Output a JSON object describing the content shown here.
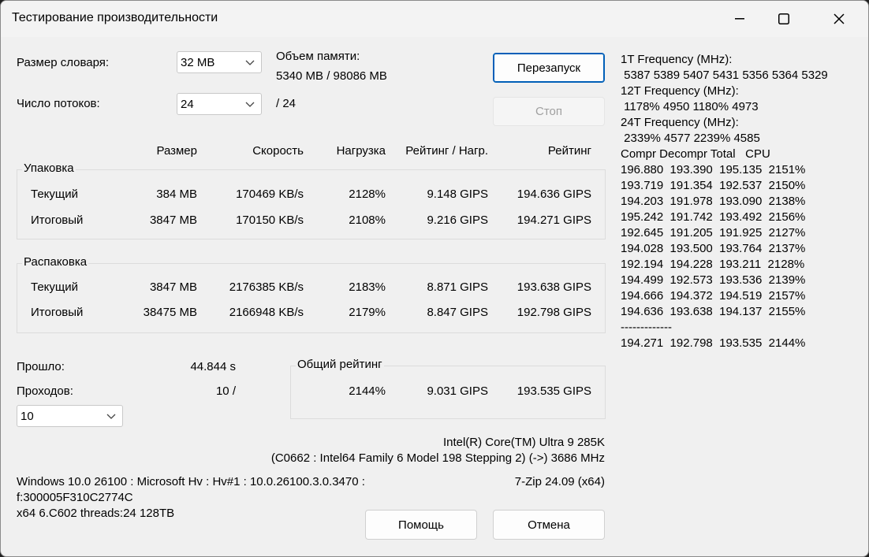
{
  "window": {
    "title": "Тестирование производительности"
  },
  "settings": {
    "dict_label": "Размер словаря:",
    "dict_value": "32 MB",
    "threads_label": "Число потоков:",
    "threads_value": "24",
    "threads_max": "/ 24",
    "memory_label": "Объем памяти:",
    "memory_value": "5340 MB / 98086 MB"
  },
  "buttons": {
    "restart": "Перезапуск",
    "stop": "Стоп",
    "help": "Помощь",
    "cancel": "Отмена"
  },
  "table": {
    "headers": [
      "Размер",
      "Скорость",
      "Нагрузка",
      "Рейтинг / Нагр.",
      "Рейтинг"
    ],
    "packing": {
      "title": "Упаковка",
      "rows": [
        {
          "label": "Текущий",
          "size": "384 MB",
          "speed": "170469 KB/s",
          "load": "2128%",
          "rpu": "9.148 GIPS",
          "rating": "194.636 GIPS"
        },
        {
          "label": "Итоговый",
          "size": "3847 MB",
          "speed": "170150 KB/s",
          "load": "2108%",
          "rpu": "9.216 GIPS",
          "rating": "194.271 GIPS"
        }
      ]
    },
    "unpacking": {
      "title": "Распаковка",
      "rows": [
        {
          "label": "Текущий",
          "size": "3847 MB",
          "speed": "2176385 KB/s",
          "load": "2183%",
          "rpu": "8.871 GIPS",
          "rating": "193.638 GIPS"
        },
        {
          "label": "Итоговый",
          "size": "38475 MB",
          "speed": "2166948 KB/s",
          "load": "2179%",
          "rpu": "8.847 GIPS",
          "rating": "192.798 GIPS"
        }
      ]
    }
  },
  "elapsed": {
    "label": "Прошло:",
    "value": "44.844 s"
  },
  "passes": {
    "label": "Проходов:",
    "value": "10 /",
    "combo_value": "10"
  },
  "total": {
    "title": "Общий рейтинг",
    "load": "2144%",
    "rpu": "9.031 GIPS",
    "rating": "193.535 GIPS"
  },
  "cpu": {
    "line1": "Intel(R) Core(TM) Ultra 9 285K",
    "line2": "(C0662 : Intel64 Family 6 Model 198 Stepping 2) (->) 3686 MHz"
  },
  "sys": {
    "line1": "Windows 10.0 26100 : Microsoft Hv : Hv#1 : 10.0.26100.3.0.3470 :",
    "line2": "f:300005F310C2774C",
    "line3": "x64 6.C602 threads:24 128TB",
    "version": "7-Zip 24.09 (x64)"
  },
  "log": [
    "1T Frequency (MHz):",
    " 5387 5389 5407 5431 5356 5364 5329",
    "12T Frequency (MHz):",
    " 1178% 4950 1180% 4973",
    "24T Frequency (MHz):",
    " 2339% 4577 2239% 4585",
    "Compr Decompr Total   CPU",
    "196.880  193.390  195.135  2151%",
    "193.719  191.354  192.537  2150%",
    "194.203  191.978  193.090  2138%",
    "195.242  191.742  193.492  2156%",
    "192.645  191.205  191.925  2127%",
    "194.028  193.500  193.764  2137%",
    "192.194  194.228  193.211  2128%",
    "194.499  192.573  193.536  2139%",
    "194.666  194.372  194.519  2157%",
    "194.636  193.638  194.137  2155%",
    "-------------",
    "194.271  192.798  193.535  2144%"
  ]
}
